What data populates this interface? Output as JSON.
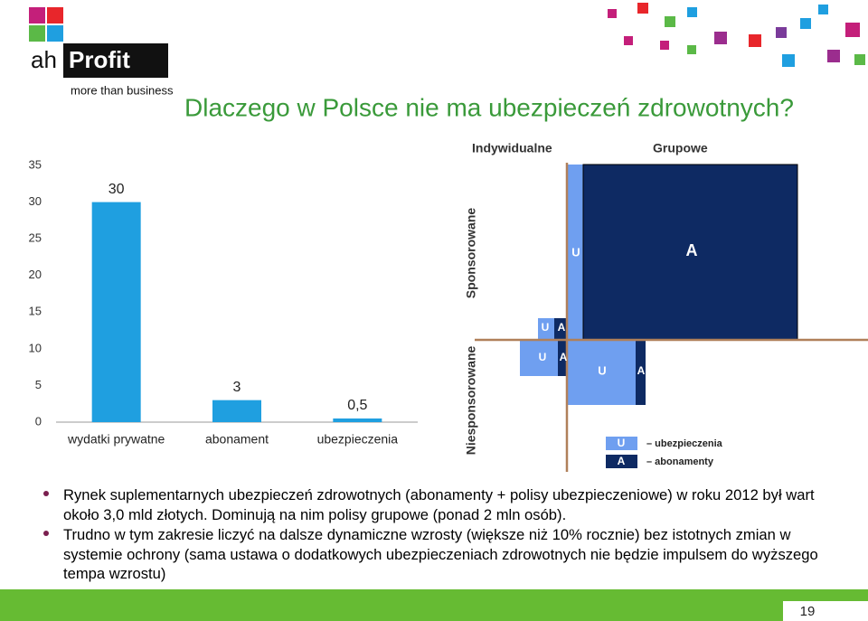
{
  "logo": {
    "prefix": "ah",
    "name": "Profit",
    "tagline": "more than business"
  },
  "title": "Dlaczego w Polsce nie ma ubezpieczeń zdrowotnych?",
  "chart_data": {
    "type": "bar",
    "categories": [
      "wydatki prywatne",
      "abonament",
      "ubezpieczenia"
    ],
    "values": [
      30,
      3,
      0.5
    ],
    "value_labels": [
      "30",
      "3",
      "0,5"
    ],
    "color": "#1f9fe0",
    "ylim": [
      0,
      35
    ],
    "yticks": [
      0,
      5,
      10,
      15,
      20,
      25,
      30,
      35
    ],
    "grid": false
  },
  "diagram": {
    "column_headers": [
      "Indywidualne",
      "Grupowe"
    ],
    "row_headers": [
      "Sponsorowane",
      "Niesponsorowane"
    ],
    "cells": [
      [
        "U",
        "A"
      ],
      [
        "U",
        "A"
      ],
      [
        "U",
        "A"
      ],
      [
        "U",
        "A"
      ]
    ],
    "legend": [
      {
        "symbol": "U",
        "label": "– ubezpieczenia"
      },
      {
        "symbol": "A",
        "label": "– abonamenty"
      }
    ]
  },
  "bullets": [
    "Rynek suplementarnych ubezpieczeń zdrowotnych (abonamenty + polisy ubezpieczeniowe) w roku 2012 był wart około 3,0 mld złotych. Dominują na nim polisy grupowe (ponad 2 mln osób).",
    "Trudno w tym zakresie liczyć na dalsze dynamiczne wzrosty (większe niż 10% rocznie) bez istotnych zmian w systemie ochrony (sama ustawa o dodatkowych ubezpieczeniach zdrowotnych nie będzie impulsem do wyższego tempa wzrostu)"
  ],
  "page_number": "19"
}
